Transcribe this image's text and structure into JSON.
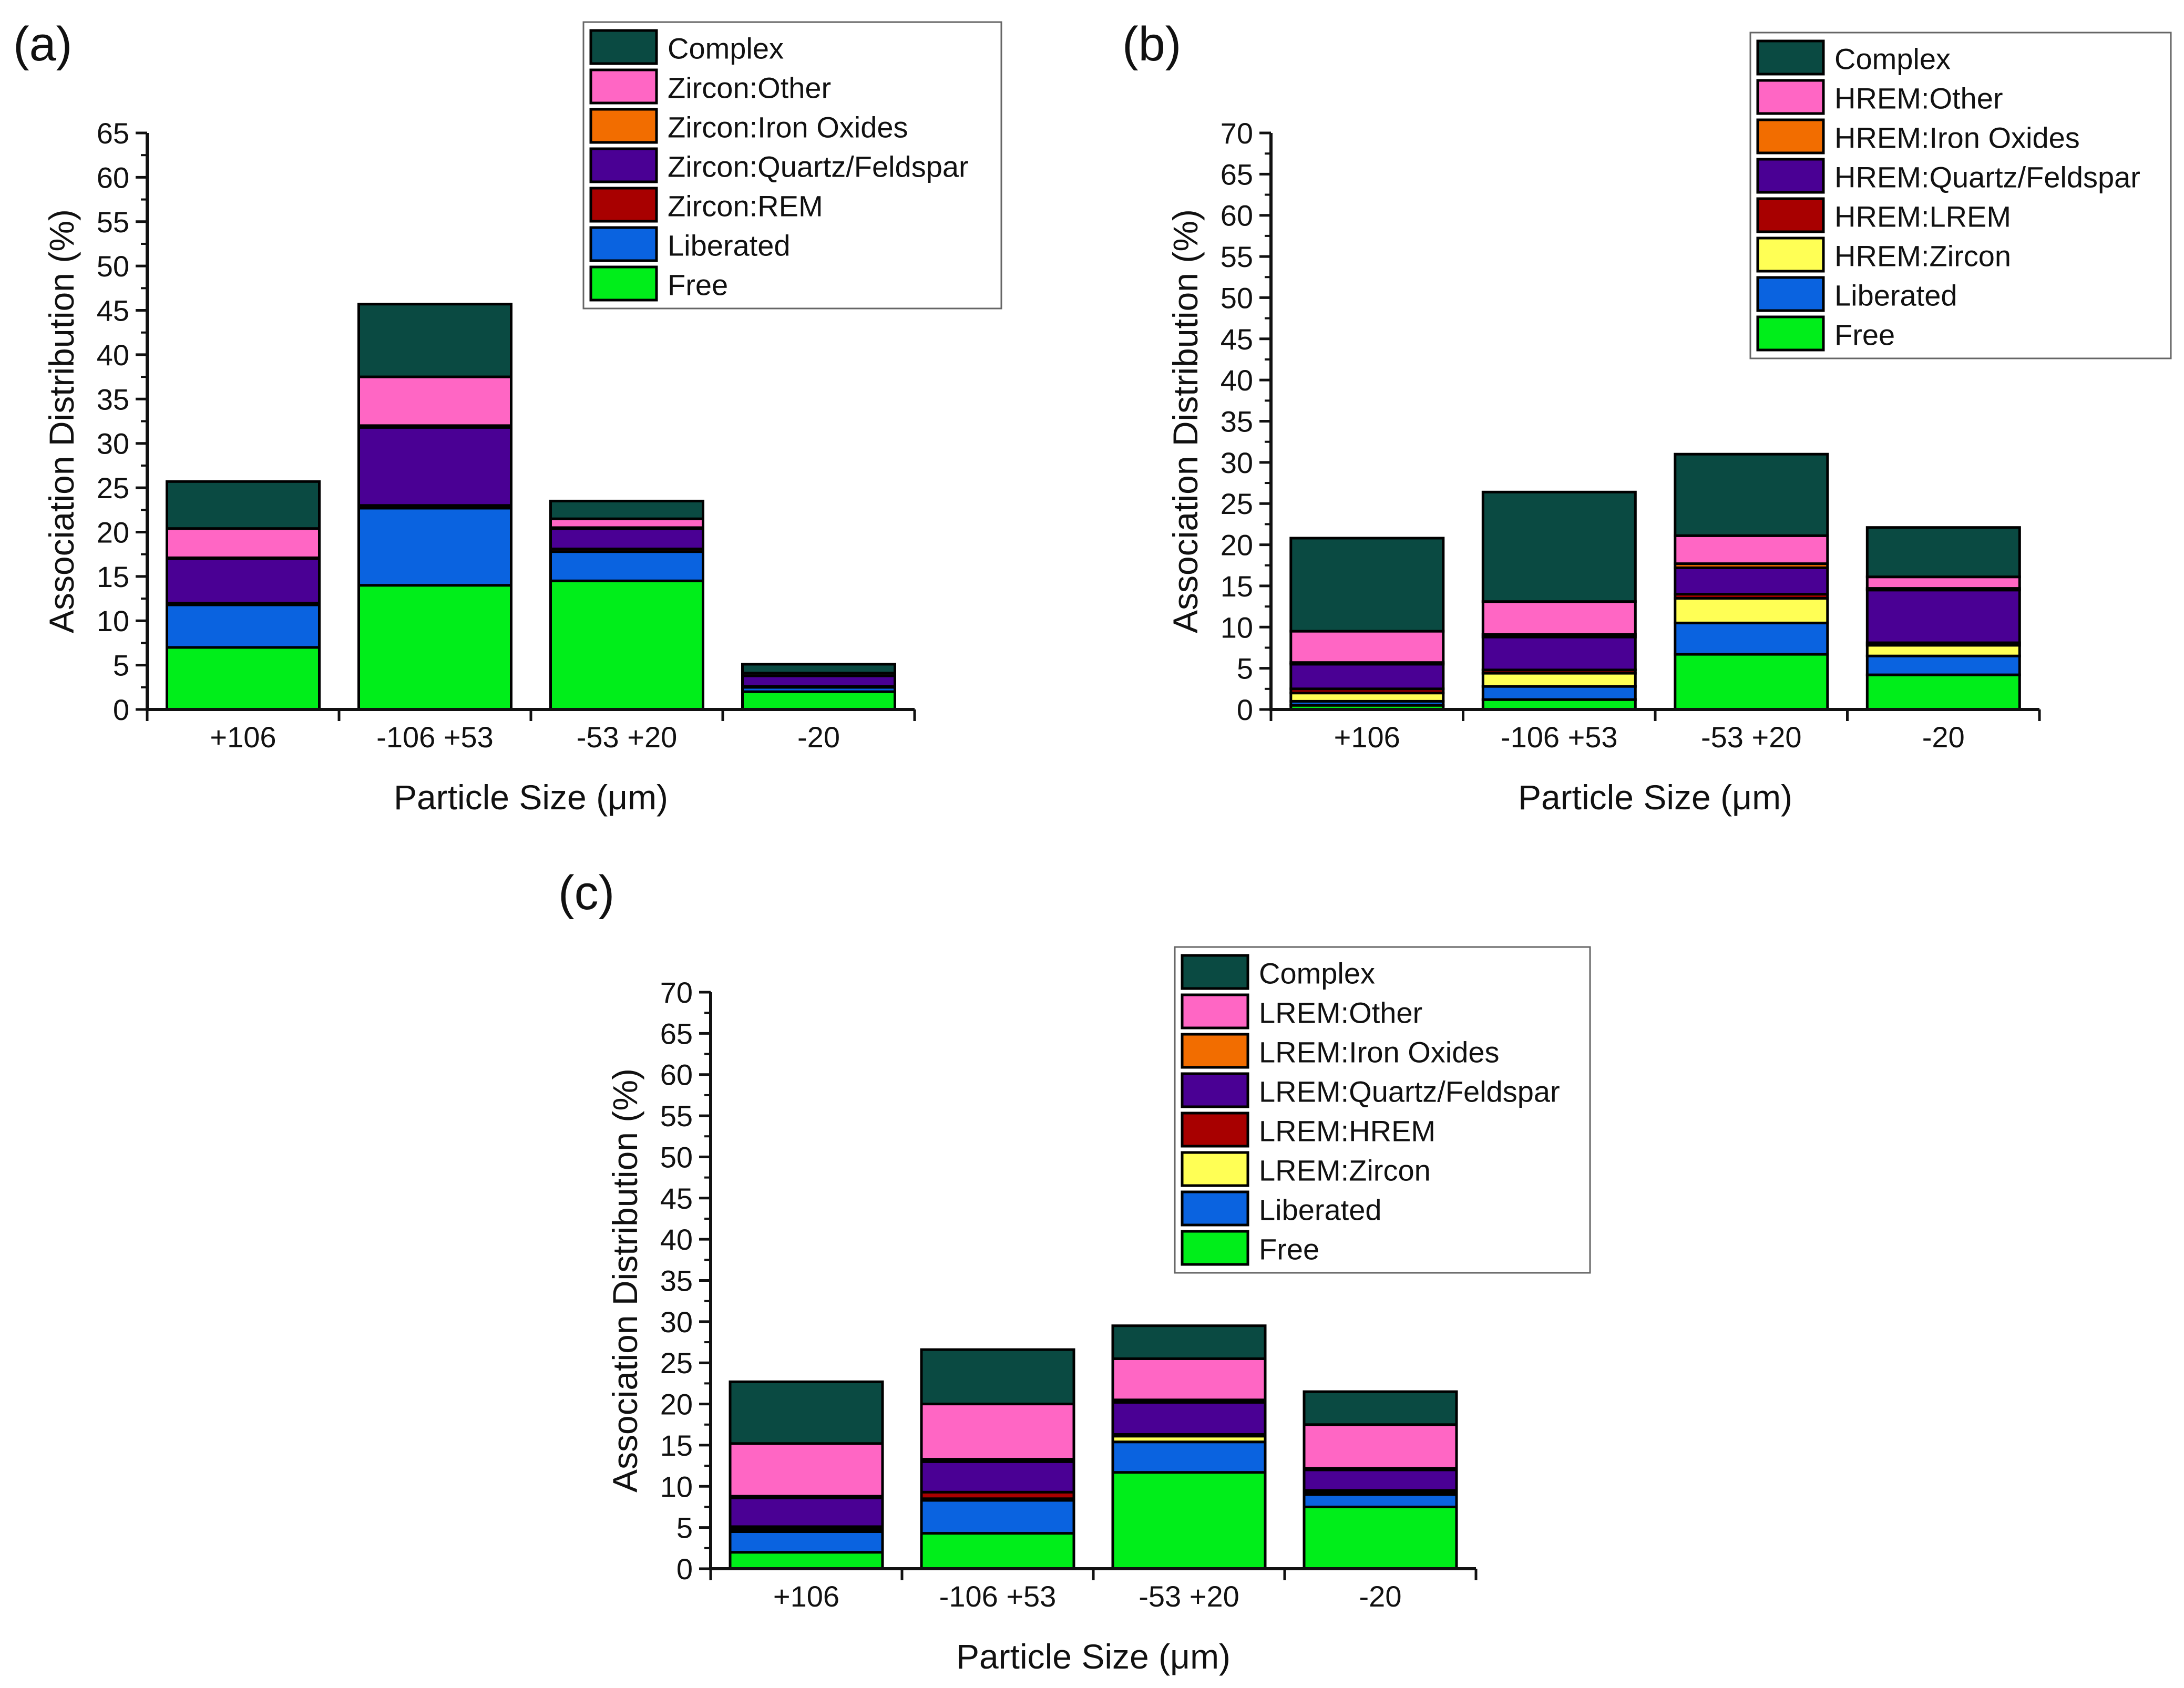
{
  "colors": {
    "Complex": "#0a4a42",
    "Other": "#ff66c4",
    "Iron Oxides": "#f26d00",
    "Quartz/Feldspar": "#4a0094",
    "REM": "#a80000",
    "Zircon": "#ffff55",
    "Liberated": "#0a63e0",
    "Free": "#00ee1a",
    "axis": "#111111",
    "legend_border": "#666666"
  },
  "chart_data": [
    {
      "panel": "(a)",
      "type": "bar",
      "stacked": true,
      "categories": [
        "+106",
        "-106 +53",
        "-53 +20",
        "-20"
      ],
      "xlabel": "Particle Size (μm)",
      "ylabel": "Association Distribution (%)",
      "ylim": [
        0,
        65
      ],
      "yticks": [
        0,
        5,
        10,
        15,
        20,
        25,
        30,
        35,
        40,
        45,
        50,
        55,
        60,
        65
      ],
      "legend_position": "top-right",
      "series": [
        {
          "name": "Free",
          "color_key": "Free",
          "values": [
            7.0,
            14.0,
            14.5,
            2.0
          ]
        },
        {
          "name": "Liberated",
          "color_key": "Liberated",
          "values": [
            4.8,
            8.7,
            3.3,
            0.5
          ]
        },
        {
          "name": "Zircon:REM",
          "color_key": "REM",
          "values": [
            0.2,
            0.3,
            0.3,
            0.1
          ]
        },
        {
          "name": "Zircon:Quartz/Feldspar",
          "color_key": "Quartz/Feldspar",
          "values": [
            5.0,
            8.8,
            2.3,
            1.2
          ]
        },
        {
          "name": "Zircon:Iron Oxides",
          "color_key": "Iron Oxides",
          "values": [
            0.1,
            0.2,
            0.1,
            0.0
          ]
        },
        {
          "name": "Zircon:Other",
          "color_key": "Other",
          "values": [
            3.3,
            5.5,
            1.0,
            0.3
          ]
        },
        {
          "name": "Complex",
          "color_key": "Complex",
          "values": [
            5.3,
            8.2,
            2.0,
            1.0
          ]
        }
      ]
    },
    {
      "panel": "(b)",
      "type": "bar",
      "stacked": true,
      "categories": [
        "+106",
        "-106 +53",
        "-53 +20",
        "-20"
      ],
      "xlabel": "Particle Size (μm)",
      "ylabel": "Association Distribution (%)",
      "ylim": [
        0,
        70
      ],
      "yticks": [
        0,
        5,
        10,
        15,
        20,
        25,
        30,
        35,
        40,
        45,
        50,
        55,
        60,
        65,
        70
      ],
      "legend_position": "top-right",
      "series": [
        {
          "name": "Free",
          "color_key": "Free",
          "values": [
            0.5,
            1.2,
            6.7,
            4.2
          ]
        },
        {
          "name": "Liberated",
          "color_key": "Liberated",
          "values": [
            0.5,
            1.6,
            3.8,
            2.3
          ]
        },
        {
          "name": "HREM:Zircon",
          "color_key": "Zircon",
          "values": [
            1.0,
            1.6,
            3.0,
            1.3
          ]
        },
        {
          "name": "HREM:LREM",
          "color_key": "REM",
          "values": [
            0.5,
            0.4,
            0.5,
            0.3
          ]
        },
        {
          "name": "HREM:Quartz/Feldspar",
          "color_key": "Quartz/Feldspar",
          "values": [
            3.0,
            4.0,
            3.2,
            6.4
          ]
        },
        {
          "name": "HREM:Iron Oxides",
          "color_key": "Iron Oxides",
          "values": [
            0.2,
            0.3,
            0.5,
            0.2
          ]
        },
        {
          "name": "HREM:Other",
          "color_key": "Other",
          "values": [
            3.8,
            4.0,
            3.4,
            1.4
          ]
        },
        {
          "name": "Complex",
          "color_key": "Complex",
          "values": [
            11.3,
            13.3,
            9.9,
            6.0
          ]
        }
      ]
    },
    {
      "panel": "(c)",
      "type": "bar",
      "stacked": true,
      "categories": [
        "+106",
        "-106 +53",
        "-53 +20",
        "-20"
      ],
      "xlabel": "Particle Size (μm)",
      "ylabel": "Association Distribution (%)",
      "ylim": [
        0,
        70
      ],
      "yticks": [
        0,
        5,
        10,
        15,
        20,
        25,
        30,
        35,
        40,
        45,
        50,
        55,
        60,
        65,
        70
      ],
      "legend_position": "top-right",
      "series": [
        {
          "name": "Free",
          "color_key": "Free",
          "values": [
            2.0,
            4.3,
            11.7,
            7.5
          ]
        },
        {
          "name": "Liberated",
          "color_key": "Liberated",
          "values": [
            2.5,
            4.0,
            3.7,
            1.5
          ]
        },
        {
          "name": "LREM:Zircon",
          "color_key": "Zircon",
          "values": [
            0.3,
            0.2,
            0.7,
            0.2
          ]
        },
        {
          "name": "LREM:HREM",
          "color_key": "REM",
          "values": [
            0.3,
            0.8,
            0.2,
            0.3
          ]
        },
        {
          "name": "LREM:Quartz/Feldspar",
          "color_key": "Quartz/Feldspar",
          "values": [
            3.5,
            3.7,
            3.9,
            2.5
          ]
        },
        {
          "name": "LREM:Iron Oxides",
          "color_key": "Iron Oxides",
          "values": [
            0.2,
            0.3,
            0.3,
            0.2
          ]
        },
        {
          "name": "LREM:Other",
          "color_key": "Other",
          "values": [
            6.4,
            6.7,
            5.0,
            5.3
          ]
        },
        {
          "name": "Complex",
          "color_key": "Complex",
          "values": [
            7.5,
            6.6,
            4.0,
            4.0
          ]
        }
      ]
    }
  ]
}
